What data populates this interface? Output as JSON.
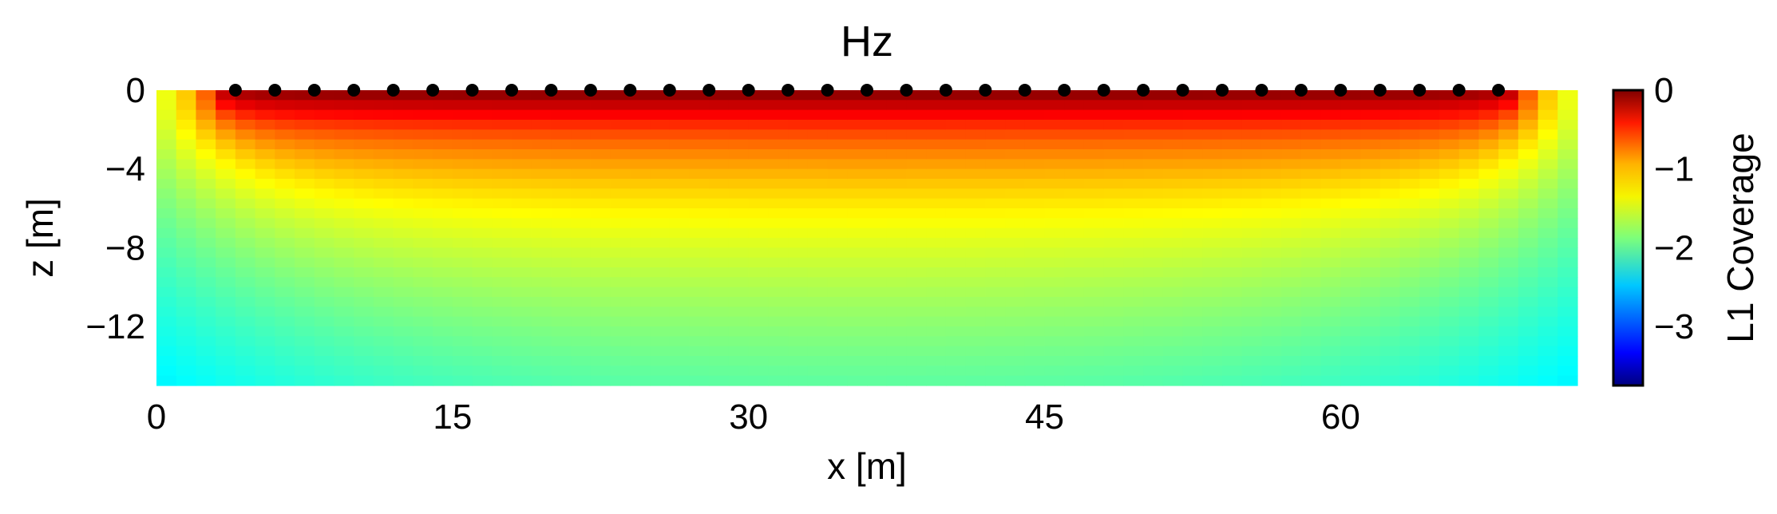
{
  "chart_data": {
    "type": "heatmap",
    "title": "Hz",
    "xlabel": "x [m]",
    "ylabel": "z [m]",
    "xlim": [
      0,
      72
    ],
    "ylim": [
      -15,
      0
    ],
    "xticks": [
      0,
      15,
      30,
      45,
      60
    ],
    "yticks": [
      0,
      -4,
      -8,
      -12
    ],
    "xtick_labels": [
      "0",
      "15",
      "30",
      "45",
      "60"
    ],
    "ytick_labels": [
      "0",
      "−4",
      "−8",
      "−12"
    ],
    "colorbar": {
      "label": "L1 Coverage",
      "range": [
        -3.75,
        0
      ],
      "ticks": [
        0,
        -1,
        -2,
        -3
      ],
      "tick_labels": [
        "0",
        "−1",
        "−2",
        "−3"
      ],
      "colormap": "jet"
    },
    "stations": {
      "x": [
        4,
        6,
        8,
        10,
        12,
        14,
        16,
        18,
        20,
        22,
        24,
        26,
        28,
        30,
        32,
        34,
        36,
        38,
        40,
        42,
        44,
        46,
        48,
        50,
        52,
        54,
        56,
        58,
        60,
        62,
        64,
        66,
        68
      ],
      "z": 0,
      "color": "#000000"
    },
    "grid": false
  }
}
